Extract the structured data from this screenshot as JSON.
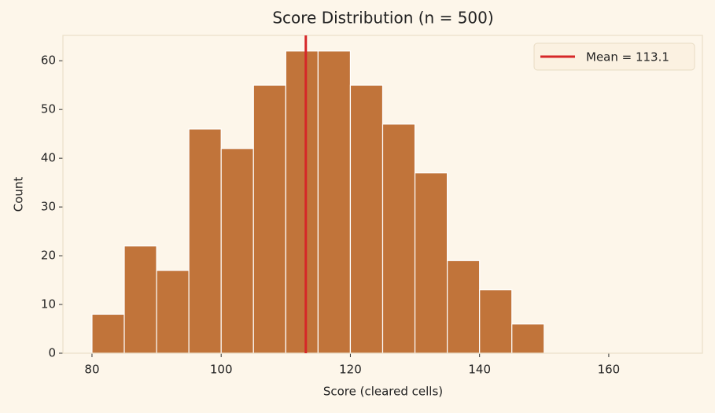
{
  "chart_data": {
    "type": "histogram",
    "title": "Score Distribution (n = 500)",
    "x_label": "Score (cleared cells)",
    "y_label": "Count",
    "bins": [
      80,
      85,
      90,
      95,
      100,
      105,
      110,
      115,
      120,
      125,
      130,
      135,
      140,
      145,
      150
    ],
    "values": [
      8,
      22,
      17,
      46,
      42,
      55,
      62,
      62,
      55,
      47,
      37,
      19,
      13,
      6
    ],
    "color": "#c1743a",
    "xlim": [
      75.5,
      174.5
    ],
    "xticks": [
      80,
      100,
      120,
      140,
      160
    ],
    "ylim": [
      0,
      65.2
    ],
    "yticks": [
      0,
      10,
      20,
      30,
      40,
      50,
      60
    ],
    "mean_line": {
      "value": 113.1,
      "label": "Mean = 113.1",
      "color": "#d62728"
    },
    "legend": "upper right"
  }
}
